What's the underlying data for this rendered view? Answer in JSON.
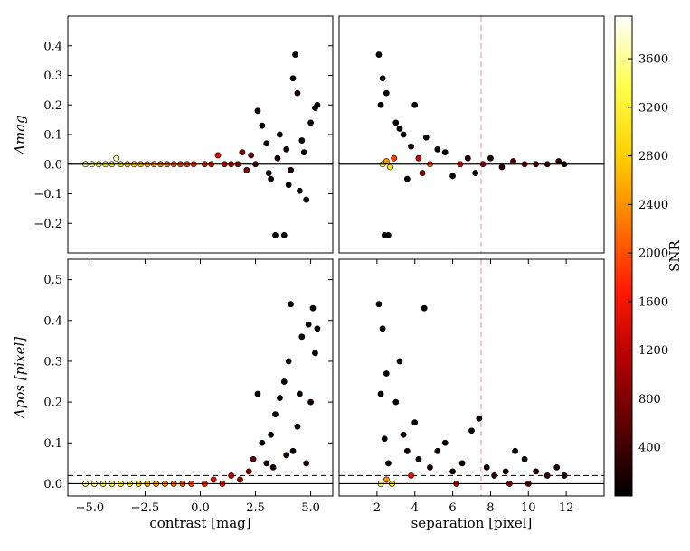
{
  "chart_data": [
    {
      "type": "scatter",
      "id": "top-left",
      "xlabel": "",
      "ylabel": "Δmag",
      "xlim": [
        -6,
        6
      ],
      "ylim": [
        -0.3,
        0.5
      ],
      "xticks": [],
      "yticks": [
        -0.2,
        -0.1,
        0.0,
        0.1,
        0.2,
        0.3,
        0.4
      ],
      "ytick_labels": [
        "−0.2",
        "−0.1",
        "0.0",
        "0.1",
        "0.2",
        "0.3",
        "0.4"
      ],
      "hline": {
        "y": 0,
        "style": "solid"
      },
      "grid": false,
      "points": [
        [
          -5.2,
          0.0,
          3650
        ],
        [
          -4.9,
          0.0,
          3600
        ],
        [
          -4.6,
          0.0,
          3500
        ],
        [
          -4.3,
          0.0,
          3300
        ],
        [
          -4.0,
          0.0,
          3200
        ],
        [
          -3.8,
          0.02,
          3700
        ],
        [
          -3.6,
          0.0,
          3100
        ],
        [
          -3.3,
          0.0,
          3000
        ],
        [
          -3.0,
          0.0,
          2900
        ],
        [
          -2.7,
          0.0,
          2800
        ],
        [
          -2.4,
          0.0,
          2700
        ],
        [
          -2.1,
          0.0,
          2500
        ],
        [
          -1.8,
          0.0,
          2400
        ],
        [
          -1.5,
          0.0,
          2300
        ],
        [
          -1.2,
          0.0,
          2100
        ],
        [
          -0.9,
          0.0,
          2000
        ],
        [
          -0.6,
          0.0,
          1900
        ],
        [
          -0.3,
          0.0,
          1800
        ],
        [
          0.2,
          0.0,
          1600
        ],
        [
          0.5,
          0.0,
          1500
        ],
        [
          0.8,
          0.03,
          1400
        ],
        [
          1.1,
          0.0,
          1300
        ],
        [
          1.4,
          0.0,
          1100
        ],
        [
          1.7,
          0.0,
          1000
        ],
        [
          1.9,
          0.04,
          900
        ],
        [
          2.1,
          -0.02,
          800
        ],
        [
          2.3,
          0.03,
          600
        ],
        [
          2.5,
          0.0,
          500
        ],
        [
          2.6,
          0.18,
          100
        ],
        [
          2.8,
          0.13,
          50
        ],
        [
          3.0,
          0.07,
          100
        ],
        [
          3.2,
          -0.05,
          50
        ],
        [
          3.4,
          -0.24,
          50
        ],
        [
          3.6,
          0.1,
          100
        ],
        [
          3.8,
          -0.24,
          50
        ],
        [
          3.9,
          0.05,
          100
        ],
        [
          4.0,
          -0.07,
          50
        ],
        [
          4.2,
          0.29,
          50
        ],
        [
          4.3,
          0.37,
          50
        ],
        [
          4.4,
          0.24,
          100
        ],
        [
          4.5,
          -0.09,
          50
        ],
        [
          4.6,
          0.08,
          100
        ],
        [
          4.8,
          -0.12,
          50
        ],
        [
          5.0,
          0.14,
          100
        ],
        [
          5.2,
          0.19,
          50
        ],
        [
          5.3,
          0.2,
          50
        ],
        [
          4.7,
          0.04,
          150
        ],
        [
          3.5,
          0.02,
          200
        ],
        [
          3.1,
          -0.03,
          150
        ],
        [
          4.1,
          -0.02,
          200
        ]
      ]
    },
    {
      "type": "scatter",
      "id": "top-right",
      "xlabel": "",
      "ylabel": "",
      "xlim": [
        0,
        14
      ],
      "ylim": [
        -0.3,
        0.5
      ],
      "xticks": [],
      "yticks": [],
      "hline": {
        "y": 0,
        "style": "solid"
      },
      "vline": {
        "x": 7.5,
        "style": "dashed",
        "color": "#f4a0a0"
      },
      "grid": false,
      "points": [
        [
          2.1,
          0.37,
          50
        ],
        [
          2.3,
          0.29,
          50
        ],
        [
          2.5,
          0.24,
          100
        ],
        [
          2.2,
          0.2,
          50
        ],
        [
          2.4,
          -0.24,
          50
        ],
        [
          2.6,
          -0.24,
          50
        ],
        [
          2.3,
          0.0,
          3500
        ],
        [
          2.5,
          0.01,
          2400
        ],
        [
          2.7,
          -0.01,
          3000
        ],
        [
          2.9,
          0.02,
          1900
        ],
        [
          3.0,
          0.14,
          50
        ],
        [
          3.2,
          0.12,
          100
        ],
        [
          3.4,
          0.1,
          50
        ],
        [
          3.6,
          -0.05,
          100
        ],
        [
          3.8,
          0.06,
          50
        ],
        [
          4.0,
          0.2,
          50
        ],
        [
          4.2,
          0.02,
          1200
        ],
        [
          4.4,
          -0.03,
          800
        ],
        [
          4.6,
          0.09,
          100
        ],
        [
          4.8,
          0.0,
          2000
        ],
        [
          5.2,
          0.05,
          50
        ],
        [
          5.6,
          0.04,
          100
        ],
        [
          6.0,
          -0.04,
          50
        ],
        [
          6.4,
          0.0,
          1500
        ],
        [
          6.8,
          0.02,
          300
        ],
        [
          7.2,
          -0.03,
          100
        ],
        [
          7.6,
          0.0,
          1000
        ],
        [
          8.0,
          0.02,
          200
        ],
        [
          8.6,
          -0.01,
          300
        ],
        [
          9.2,
          0.01,
          500
        ],
        [
          9.8,
          0.0,
          800
        ],
        [
          10.4,
          0.0,
          600
        ],
        [
          11.0,
          0.0,
          400
        ],
        [
          11.6,
          0.01,
          300
        ],
        [
          11.9,
          0.0,
          200
        ]
      ]
    },
    {
      "type": "scatter",
      "id": "bottom-left",
      "xlabel": "contrast [mag]",
      "ylabel": "Δpos [pixel]",
      "xlim": [
        -6,
        6
      ],
      "ylim": [
        -0.03,
        0.55
      ],
      "xticks": [
        -5.0,
        -2.5,
        0.0,
        2.5,
        5.0
      ],
      "xtick_labels": [
        "−5.0",
        "−2.5",
        "0.0",
        "2.5",
        "5.0"
      ],
      "yticks": [
        0.0,
        0.1,
        0.2,
        0.3,
        0.4,
        0.5
      ],
      "ytick_labels": [
        "0.0",
        "0.1",
        "0.2",
        "0.3",
        "0.4",
        "0.5"
      ],
      "hline": {
        "y": 0,
        "style": "solid"
      },
      "hline2": {
        "y": 0.02,
        "style": "dashed"
      },
      "grid": false,
      "points": [
        [
          -5.2,
          0.0,
          3650
        ],
        [
          -4.8,
          0.0,
          3600
        ],
        [
          -4.4,
          0.0,
          3400
        ],
        [
          -4.0,
          0.0,
          3300
        ],
        [
          -3.6,
          0.0,
          3100
        ],
        [
          -3.2,
          0.0,
          3000
        ],
        [
          -2.8,
          0.0,
          2900
        ],
        [
          -2.4,
          0.0,
          2700
        ],
        [
          -2.0,
          0.0,
          2500
        ],
        [
          -1.6,
          0.0,
          2400
        ],
        [
          -1.2,
          0.0,
          2200
        ],
        [
          -0.8,
          0.0,
          2000
        ],
        [
          -0.4,
          0.0,
          1900
        ],
        [
          0.2,
          0.0,
          1700
        ],
        [
          0.6,
          0.01,
          1500
        ],
        [
          1.0,
          0.0,
          1400
        ],
        [
          1.4,
          0.02,
          1200
        ],
        [
          1.8,
          0.01,
          1000
        ],
        [
          2.2,
          0.03,
          800
        ],
        [
          2.4,
          0.06,
          600
        ],
        [
          2.6,
          0.22,
          100
        ],
        [
          2.8,
          0.1,
          50
        ],
        [
          3.0,
          0.05,
          100
        ],
        [
          3.2,
          0.12,
          50
        ],
        [
          3.4,
          0.17,
          100
        ],
        [
          3.6,
          0.21,
          50
        ],
        [
          3.8,
          0.25,
          50
        ],
        [
          4.0,
          0.3,
          100
        ],
        [
          4.1,
          0.44,
          50
        ],
        [
          4.2,
          0.08,
          100
        ],
        [
          4.4,
          0.14,
          50
        ],
        [
          4.5,
          0.22,
          100
        ],
        [
          4.6,
          0.36,
          50
        ],
        [
          4.8,
          0.05,
          150
        ],
        [
          4.9,
          0.39,
          50
        ],
        [
          5.0,
          0.2,
          100
        ],
        [
          5.1,
          0.43,
          50
        ],
        [
          5.2,
          0.32,
          50
        ],
        [
          5.3,
          0.38,
          50
        ],
        [
          3.3,
          0.04,
          200
        ],
        [
          3.9,
          0.07,
          150
        ]
      ]
    },
    {
      "type": "scatter",
      "id": "bottom-right",
      "xlabel": "separation [pixel]",
      "ylabel": "",
      "xlim": [
        0,
        14
      ],
      "ylim": [
        -0.03,
        0.55
      ],
      "xticks": [
        2,
        4,
        6,
        8,
        10,
        12
      ],
      "xtick_labels": [
        "2",
        "4",
        "6",
        "8",
        "10",
        "12"
      ],
      "yticks": [],
      "hline": {
        "y": 0,
        "style": "solid"
      },
      "hline2": {
        "y": 0.02,
        "style": "dashed"
      },
      "vline": {
        "x": 7.5,
        "style": "dashed",
        "color": "#f4a0a0"
      },
      "grid": false,
      "points": [
        [
          2.1,
          0.44,
          50
        ],
        [
          2.3,
          0.38,
          50
        ],
        [
          2.5,
          0.27,
          100
        ],
        [
          2.2,
          0.22,
          50
        ],
        [
          2.4,
          0.11,
          100
        ],
        [
          2.6,
          0.05,
          50
        ],
        [
          2.2,
          0.0,
          3500
        ],
        [
          2.5,
          0.01,
          2400
        ],
        [
          2.8,
          0.0,
          3000
        ],
        [
          3.0,
          0.2,
          50
        ],
        [
          3.2,
          0.3,
          50
        ],
        [
          3.4,
          0.12,
          100
        ],
        [
          3.6,
          0.08,
          50
        ],
        [
          3.8,
          0.02,
          1500
        ],
        [
          4.0,
          0.15,
          50
        ],
        [
          4.2,
          0.06,
          100
        ],
        [
          4.5,
          0.43,
          50
        ],
        [
          4.8,
          0.04,
          150
        ],
        [
          5.2,
          0.08,
          100
        ],
        [
          5.6,
          0.1,
          50
        ],
        [
          6.0,
          0.03,
          200
        ],
        [
          6.5,
          0.05,
          100
        ],
        [
          7.0,
          0.13,
          50
        ],
        [
          7.4,
          0.16,
          50
        ],
        [
          7.8,
          0.04,
          100
        ],
        [
          8.2,
          0.02,
          300
        ],
        [
          8.8,
          0.03,
          200
        ],
        [
          9.3,
          0.08,
          50
        ],
        [
          9.8,
          0.06,
          100
        ],
        [
          10.4,
          0.03,
          200
        ],
        [
          11.0,
          0.02,
          300
        ],
        [
          11.5,
          0.04,
          150
        ],
        [
          11.9,
          0.02,
          200
        ],
        [
          9.0,
          0.0,
          800
        ],
        [
          10.0,
          0.0,
          600
        ],
        [
          6.2,
          0.0,
          1200
        ]
      ]
    }
  ],
  "colorbar": {
    "label": "SNR",
    "min": 0,
    "max": 3950,
    "ticks": [
      400,
      800,
      1200,
      1600,
      2000,
      2400,
      2800,
      3200,
      3600
    ],
    "colormap": "hot",
    "color_stops": [
      "#000000",
      "#5a0000",
      "#b40000",
      "#ff1a00",
      "#ff7a00",
      "#ffd200",
      "#ffff50",
      "#ffffff"
    ]
  }
}
